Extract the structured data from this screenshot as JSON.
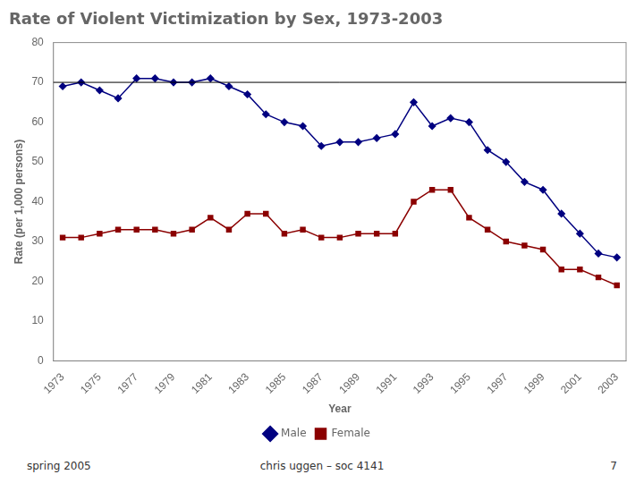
{
  "chart_data": {
    "type": "line",
    "title": "Rate of Violent Victimization by Sex, 1973-2003",
    "x_label": "Year",
    "y_label": "Rate (per 1,000 persons)",
    "x": [
      1973,
      1974,
      1975,
      1976,
      1977,
      1978,
      1979,
      1980,
      1981,
      1982,
      1983,
      1984,
      1985,
      1986,
      1987,
      1988,
      1989,
      1990,
      1991,
      1992,
      1993,
      1994,
      1995,
      1996,
      1997,
      1998,
      1999,
      2000,
      2001,
      2002,
      2003
    ],
    "series": [
      {
        "name": "Male",
        "color": "#000080",
        "marker": "diamond",
        "values": [
          69,
          70,
          68,
          66,
          71,
          71,
          70,
          70,
          71,
          69,
          67,
          62,
          60,
          59,
          54,
          55,
          55,
          56,
          57,
          65,
          59,
          61,
          60,
          53,
          50,
          45,
          43,
          37,
          32,
          27,
          26
        ]
      },
      {
        "name": "Female",
        "color": "#8B0000",
        "marker": "square",
        "values": [
          31,
          31,
          32,
          33,
          33,
          33,
          32,
          33,
          36,
          33,
          37,
          37,
          32,
          33,
          31,
          31,
          32,
          32,
          32,
          40,
          43,
          43,
          36,
          33,
          30,
          29,
          28,
          23,
          23,
          21,
          19
        ]
      }
    ],
    "xlim": [
      1972.5,
      2003.5
    ],
    "xticks": [
      1973,
      1975,
      1977,
      1979,
      1981,
      1983,
      1985,
      1987,
      1989,
      1991,
      1993,
      1995,
      1997,
      1999,
      2001,
      2003
    ],
    "ylim": [
      0,
      80
    ],
    "yticks": [
      0,
      10,
      20,
      30,
      40,
      50,
      60,
      70,
      80
    ],
    "hlines": [
      {
        "y": 70,
        "color": "#000000"
      }
    ],
    "annotations": [
      "spring 2005",
      "chris uggen – soc 4141",
      "7"
    ],
    "grid": false,
    "legend": "bottom"
  }
}
